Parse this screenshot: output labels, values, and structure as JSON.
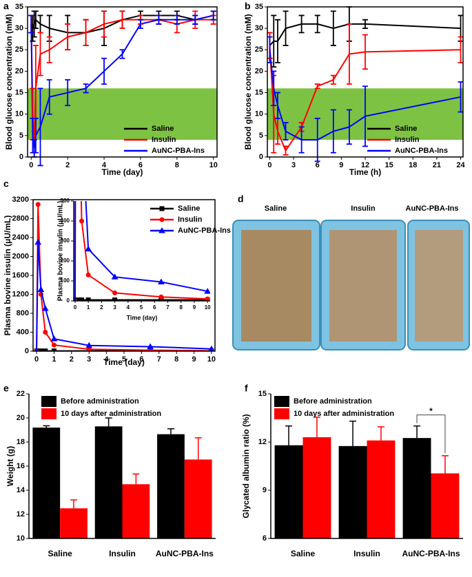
{
  "chart_data": [
    {
      "type": "line",
      "panel": "a",
      "xlabel": "Time (day)",
      "ylabel": "Blood glucose concentration (mM)",
      "xlim": [
        -0.2,
        10.2
      ],
      "ylim": [
        0,
        35
      ],
      "xticks": [
        0,
        2,
        4,
        6,
        8,
        10
      ],
      "yticks": [
        0,
        5,
        10,
        15,
        20,
        25,
        30,
        35
      ],
      "band": [
        4,
        16
      ],
      "band_color": "#7dc242",
      "x": [
        0,
        0.083,
        0.167,
        0.25,
        0.5,
        1,
        2,
        3,
        4,
        5,
        6,
        7,
        8,
        9,
        10
      ],
      "series": [
        {
          "name": "Saline",
          "color": "#000000",
          "values": [
            31,
            30,
            31,
            32,
            31,
            30,
            29,
            29,
            30,
            32,
            33,
            33,
            33,
            32,
            33
          ],
          "errors": [
            2,
            3,
            3,
            2,
            2,
            3,
            4,
            3,
            4,
            2,
            1,
            1,
            1,
            1,
            1
          ]
        },
        {
          "name": "Insulin",
          "color": "#ff0000",
          "values": [
            31,
            10,
            3,
            16,
            24,
            25,
            28,
            29,
            31,
            32,
            32,
            32,
            31,
            32,
            32
          ],
          "errors": [
            2,
            6,
            3,
            10,
            5,
            3,
            3,
            3,
            3,
            2,
            1,
            1,
            2,
            2,
            1
          ]
        },
        {
          "name": "AuNC-PBA-Ins",
          "color": "#0000ff",
          "values": [
            31,
            5,
            2,
            5,
            7,
            14,
            15,
            16,
            20,
            24,
            31,
            32,
            32,
            32,
            33
          ],
          "errors": [
            2,
            4,
            2,
            4,
            9,
            4,
            3,
            1,
            3,
            1,
            1,
            1,
            1,
            1,
            1
          ]
        }
      ]
    },
    {
      "type": "line",
      "panel": "b",
      "xlabel": "Time (h)",
      "ylabel": "Blood glucose concentration (mM)",
      "xlim": [
        -0.3,
        24.3
      ],
      "ylim": [
        0,
        35
      ],
      "xticks": [
        0,
        3,
        6,
        9,
        12,
        15,
        18,
        21,
        24
      ],
      "yticks": [
        0,
        5,
        10,
        15,
        20,
        25,
        30,
        35
      ],
      "band": [
        4,
        16
      ],
      "band_color": "#7dc242",
      "x": [
        0,
        0.5,
        1,
        2,
        4,
        6,
        8,
        10,
        12,
        24
      ],
      "series": [
        {
          "name": "Saline",
          "color": "#000000",
          "values": [
            26,
            27,
            27,
            30,
            31,
            31,
            30,
            31,
            31,
            30
          ],
          "errors": [
            3,
            6,
            5,
            4,
            2,
            2,
            4,
            4,
            1,
            3
          ]
        },
        {
          "name": "Insulin",
          "color": "#ff0000",
          "values": [
            26,
            10,
            6,
            1.5,
            7,
            16.5,
            18,
            24,
            24.5,
            25
          ],
          "errors": [
            3,
            9,
            3,
            1,
            1,
            0.5,
            1,
            7,
            4,
            3
          ]
        },
        {
          "name": "AuNC-PBA-Ins",
          "color": "#0000ff",
          "values": [
            25,
            16,
            12,
            6,
            4,
            4,
            6,
            7,
            9.5,
            14
          ],
          "errors": [
            3,
            4,
            3,
            2,
            3,
            5,
            5,
            4,
            7,
            3.5
          ]
        }
      ]
    },
    {
      "type": "line",
      "panel": "c",
      "xlabel": "Time (day)",
      "ylabel": "Plasma bovine insulin (μU/mL)",
      "xlim": [
        -0.2,
        10.2
      ],
      "ylim": [
        0,
        3200
      ],
      "xticks": [
        0,
        1,
        2,
        3,
        4,
        5,
        6,
        7,
        8,
        9,
        10
      ],
      "yticks": [
        0,
        400,
        800,
        1200,
        1600,
        2000,
        2400,
        2800,
        3200
      ],
      "x": [
        0,
        0.083,
        0.25,
        0.5,
        1,
        3,
        6.5,
        10
      ],
      "series": [
        {
          "name": "Saline",
          "color": "#000000",
          "marker": "square",
          "values": [
            5,
            5,
            5,
            5,
            5,
            5,
            5,
            5
          ]
        },
        {
          "name": "Insulin",
          "color": "#ff0000",
          "marker": "circle",
          "values": [
            0,
            3100,
            1200,
            400,
            130,
            40,
            20,
            10
          ]
        },
        {
          "name": "AuNC-PBA-Ins",
          "color": "#0000ff",
          "marker": "triangle",
          "values": [
            0,
            2300,
            1300,
            900,
            260,
            120,
            95,
            48
          ]
        }
      ],
      "inset": {
        "xlabel": "Time (day)",
        "ylabel": "Plasma bovine insulin (μU/mL)",
        "xlim": [
          -0.1,
          10.2
        ],
        "ylim": [
          0,
          500
        ],
        "xticks": [
          0,
          1,
          2,
          3,
          4,
          5,
          6,
          7,
          8,
          9,
          10
        ],
        "yticks": [
          0,
          100,
          200,
          300,
          400,
          500
        ]
      }
    },
    {
      "type": "image",
      "panel": "d",
      "labels": [
        "Saline",
        "Insulin",
        "AuNC-PBA-Ins"
      ]
    },
    {
      "type": "bar",
      "panel": "e",
      "ylabel": "Weight (g)",
      "categories": [
        "Saline",
        "Insulin",
        "AuNC-PBA-Ins"
      ],
      "ylim": [
        10,
        22
      ],
      "yticks": [
        10,
        12,
        14,
        16,
        18,
        20,
        22
      ],
      "series": [
        {
          "name": "Before administration",
          "color": "#000000",
          "values": [
            19.2,
            19.3,
            18.65
          ],
          "errors": [
            0.15,
            0.7,
            0.45
          ]
        },
        {
          "name": "10 days after administration",
          "color": "#ff0000",
          "values": [
            12.5,
            14.5,
            16.55
          ],
          "errors": [
            0.7,
            0.85,
            1.8
          ]
        }
      ]
    },
    {
      "type": "bar",
      "panel": "f",
      "ylabel": "Glycated albumin ratio (%)",
      "categories": [
        "Saline",
        "Insulin",
        "AuNC-PBA-Ins"
      ],
      "ylim": [
        6,
        15
      ],
      "yticks": [
        6,
        9,
        12,
        15
      ],
      "annotation": "*",
      "series": [
        {
          "name": "Before administration",
          "color": "#000000",
          "values": [
            11.8,
            11.75,
            12.25
          ],
          "errors": [
            1.2,
            1.55,
            0.75
          ]
        },
        {
          "name": "10 days after administration",
          "color": "#ff0000",
          "values": [
            12.3,
            12.1,
            10.05
          ],
          "errors": [
            1.25,
            0.85,
            1.1
          ]
        }
      ]
    }
  ]
}
